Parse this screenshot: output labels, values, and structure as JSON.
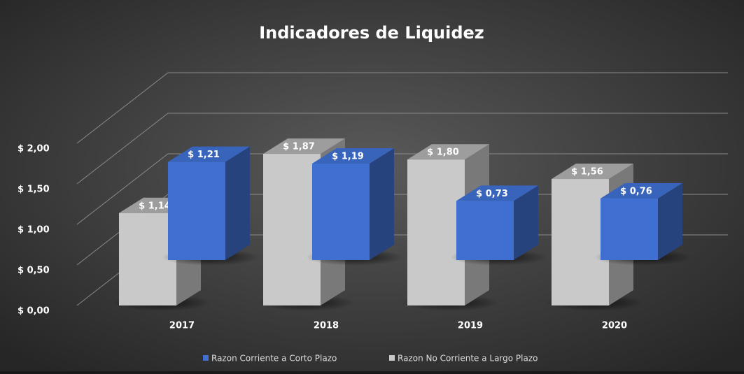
{
  "chart_data": {
    "type": "bar3d",
    "title": "Indicadores de Liquidez",
    "categories": [
      "2017",
      "2018",
      "2019",
      "2020"
    ],
    "series": [
      {
        "name": "Razon Corriente a Corto Plazo",
        "color": "#3f6fd1",
        "values": [
          1.21,
          1.19,
          0.73,
          0.76
        ],
        "value_labels": [
          "$ 1,21",
          "$ 1,19",
          "$ 0,73",
          "$ 0,76"
        ]
      },
      {
        "name": "Razon No Corriente a Largo Plazo",
        "color": "#c9c9c9",
        "values": [
          1.14,
          1.87,
          1.8,
          1.56
        ],
        "value_labels": [
          "$ 1,14",
          "$ 1,87",
          "$ 1,80",
          "$ 1,56"
        ]
      }
    ],
    "ylim": [
      0,
      2
    ],
    "yticks": [
      {
        "value": 0,
        "label": "$ 0,00"
      },
      {
        "value": 0.5,
        "label": "$ 0,50"
      },
      {
        "value": 1,
        "label": "$ 1,00"
      },
      {
        "value": 1.5,
        "label": "$ 1,50"
      },
      {
        "value": 2,
        "label": "$ 2,00"
      }
    ],
    "grid": true,
    "legend": "bottom"
  }
}
